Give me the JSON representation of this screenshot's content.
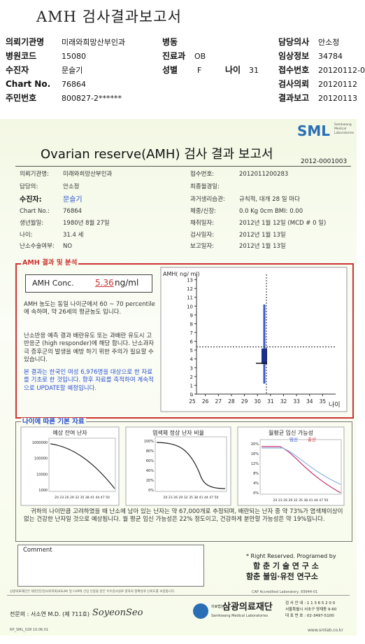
{
  "header": {
    "title": "AMH 검사결과보고서",
    "fields": [
      {
        "label": "의뢰기관명",
        "value": "미래와희망산부인과"
      },
      {
        "label": "병동"
      },
      {
        "label": "담당의사",
        "value": "안소정"
      },
      {
        "label": "병원코드",
        "value": "15080"
      },
      {
        "label": "진료과",
        "value": "OB"
      },
      {
        "label": "임상정보",
        "value": "34784"
      },
      {
        "label": "수진자",
        "value": "문슬기"
      },
      {
        "label": "성별",
        "value": "F"
      },
      {
        "label": "나이",
        "value": "31"
      },
      {
        "label": "접수번호",
        "value": "20120112-0"
      },
      {
        "label": "Chart No.",
        "value": "76864"
      },
      {
        "label": "검사의뢰",
        "value": "20120112"
      },
      {
        "label": "주민번호",
        "value": "800827-2******"
      },
      {
        "label": "결과보고",
        "value": "20120113"
      }
    ]
  },
  "report": {
    "logo": "SML",
    "logo_sub": [
      "Samkwang",
      "Medical",
      "Laboratories"
    ],
    "title": "Ovarian reserve(AMH) 검사 결과 보고서",
    "number": "2012-0001003",
    "left": [
      {
        "label": "의뢰기관명:",
        "value": "미래와희망산부인과"
      },
      {
        "label": "담당의:",
        "value": "안소정"
      },
      {
        "label": "수진자:",
        "value": "문슬기"
      },
      {
        "label": "Chart No.:",
        "value": "76864"
      },
      {
        "label": "생년월일:",
        "value": "1980년 8월 27일"
      },
      {
        "label": "나이:",
        "value": "31.4 세"
      },
      {
        "label": "난소수술여부:",
        "value": "NO"
      }
    ],
    "right": [
      {
        "label": "접수번호:",
        "value": "2012011200283"
      },
      {
        "label": "최종월경일:"
      },
      {
        "label": "과거생리습관:",
        "value": "규칙적, 대개 28 일 마다"
      },
      {
        "label": "체중/신장:",
        "value": "0.0 Kg      0cm    BMI:  0.00"
      },
      {
        "label": "채취일자:",
        "value": "2012년 1월 12일   (MCD # 0 일)"
      },
      {
        "label": "검사일자:",
        "value": "2012년 1월 13일"
      },
      {
        "label": "보고일자:",
        "value": "2012년 1월 13일"
      }
    ]
  },
  "analysis": {
    "title": "AMH 결과 및 분석",
    "conc_label": "AMH Conc.",
    "conc_value": 5.36,
    "conc_unit": "ng/ml",
    "para1": "AMH 농도는 동일 나이군에서  60 ~ 70 percentile에 속하며, 약 26세의 평균농도 입니다.",
    "para2": "난소반응 예측 결과 배란유도 또는 과배란 유도시 고반응군 (high responder)에 해당 합니다. 난소과자극 증후군의 발생을 예방 하기 위한 주의가 필요할 수 있습니다.",
    "para3": "본 결과는 한국인 여성 6,976명을 대상으로 한 자료를 기초로 한 것입니다. 향후 자료를 축적하여 계속적으로 UPDATE할 예정입니다.",
    "chart": {
      "y_label": "AMH( ng/ ml)",
      "x_label": "나이",
      "ylim": [
        0,
        13.6
      ],
      "yticks": [
        0,
        1,
        2,
        3,
        4,
        5,
        6,
        7,
        8,
        9,
        10,
        11,
        12,
        13
      ],
      "xlim": [
        24.3,
        36
      ],
      "xticks": [
        25,
        26,
        27,
        28,
        29,
        30,
        31,
        32,
        33,
        34,
        35
      ]
    }
  },
  "basic": {
    "title": "나이에 따른 기본 자료",
    "charts": [
      {
        "title": "예상 잔여 난자",
        "yticks": [
          "1000000",
          "100000",
          "10000",
          "1000"
        ],
        "xticks": "20 23 26 29 32 35 38 41 44 47 50"
      },
      {
        "title": "염색체 정상 난자 비율",
        "yticks": [
          "100%",
          "80%",
          "60%",
          "40%",
          "20%",
          "0%"
        ],
        "xticks": "20 23 26 29 32 35 38 41 44 47 50"
      },
      {
        "title": "월평균 임신 가능성",
        "legend": [
          "임신",
          "출산"
        ],
        "yticks": [
          "20%",
          "16%",
          "12%",
          "8%",
          "4%",
          "0%"
        ],
        "xticks": "20 23 26 29 32 35 38 41 44 47 50"
      }
    ],
    "summary": "귀하의 나이만큼 고려하였을 때 난소에 남아 있는 난자는 약 67,000개로 추정되며, 배란되는 난자 중 약 73%가 염색체이상이 없는 건강한 난자일 것으로 예상됩니다. 월 평균 임신 가능성은 22% 정도이고, 건강하게 분만할 가능성은 약 19%입니다."
  },
  "comment": {
    "label": "Comment"
  },
  "credits": [
    "* Right Reserved. Programed by",
    "함 춘  기 술  연 구 소",
    "함춘 불임·유전 연구소"
  ],
  "footer": {
    "notice": "삼광의료재단은 대한진단검사의학회(KSLM) 및 CAP에 신임 인증을 받은 우수검사실로 결과의 정확성과 신뢰도를 보증합니다.",
    "cap": "CAP  Accredited  Laboratory,  69944-01",
    "doctor": "전문의 : 서소연 M.D. (제 711호)",
    "signature": "SoyeonSeo",
    "org_prefix": "의료법인",
    "org": "삼광의료재단",
    "org_en": "Samkwang Medical Laboratories",
    "info": [
      "검 사 안 내 : 1 1 3 6 5 2 0 0",
      "서울특별시 서초구 양재동 9-60",
      "대 표 번 호 : 02-3497-5100"
    ],
    "code": "RP_SML_028  10.06.01",
    "web": "www.smlab.co.kr"
  }
}
